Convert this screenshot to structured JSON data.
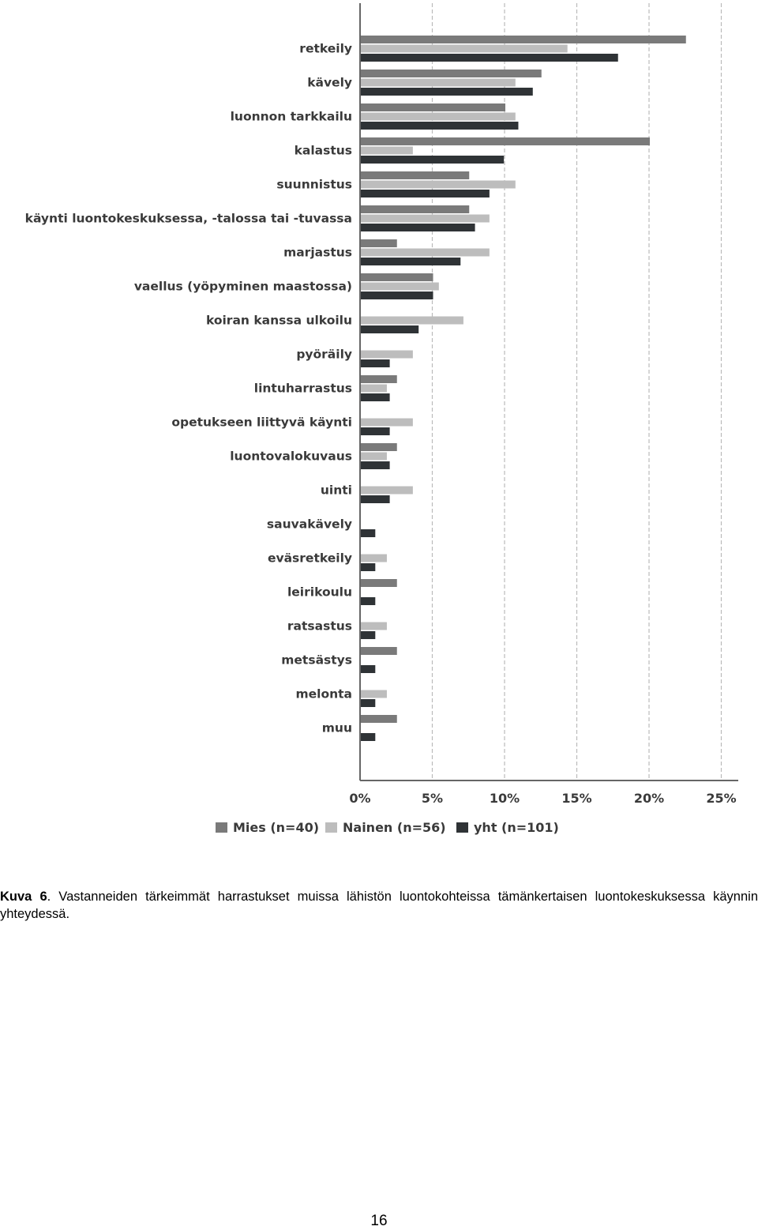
{
  "chart_data": {
    "type": "bar",
    "orientation": "horizontal",
    "categories": [
      "retkeily",
      "kävely",
      "luonnon tarkkailu",
      "kalastus",
      "suunnistus",
      "käynti luontokeskuksessa, -talossa tai -tuvassa",
      "marjastus",
      "vaellus (yöpyminen maastossa)",
      "koiran kanssa ulkoilu",
      "pyöräily",
      "lintuharrastus",
      "opetukseen liittyvä käynti",
      "luontovalokuvaus",
      "uinti",
      "sauvakävely",
      "eväsretkeily",
      "leirikoulu",
      "ratsastus",
      "metsästys",
      "melonta",
      "muu"
    ],
    "series": [
      {
        "name": "Mies (n=40)",
        "color": "#7a7a7a",
        "values": [
          22.5,
          12.5,
          10,
          20,
          7.5,
          7.5,
          2.5,
          5,
          0,
          0,
          2.5,
          0,
          2.5,
          0,
          0,
          0,
          2.5,
          0,
          2.5,
          0,
          2.5
        ]
      },
      {
        "name": "Nainen (n=56)",
        "color": "#bdbdbd",
        "values": [
          14.3,
          10.7,
          10.7,
          3.6,
          10.7,
          8.9,
          8.9,
          5.4,
          7.1,
          3.6,
          1.8,
          3.6,
          1.8,
          3.6,
          0,
          1.8,
          0,
          1.8,
          0,
          1.8,
          0
        ]
      },
      {
        "name": "yht (n=101)",
        "color": "#2f3336",
        "values": [
          17.8,
          11.9,
          10.9,
          9.9,
          8.9,
          7.9,
          6.9,
          5,
          4,
          2,
          2,
          2,
          2,
          2,
          1,
          1,
          1,
          1,
          1,
          1,
          1
        ]
      }
    ],
    "xlim": [
      0,
      25
    ],
    "xticks": [
      "0%",
      "5%",
      "10%",
      "15%",
      "20%",
      "25%"
    ],
    "grid": "vertical dashed",
    "legend": "bottom"
  },
  "caption": {
    "label": "Kuva 6",
    "text": ". Vastanneiden tärkeimmät harrastukset muissa lähistön luontokohteissa tämänkertaisen luontokeskuksessa käynnin yhteydessä."
  },
  "page_number": "16"
}
